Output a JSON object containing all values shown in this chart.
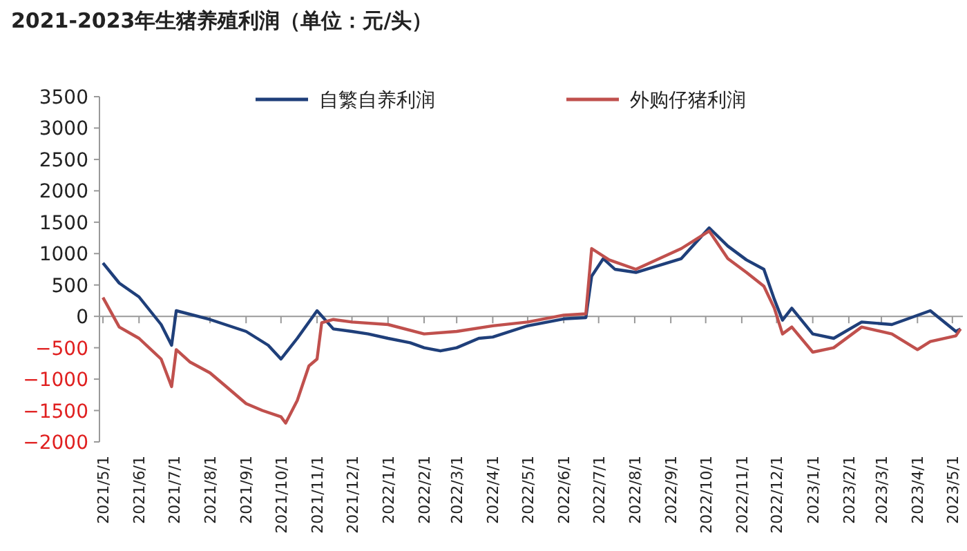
{
  "chart_data": {
    "type": "line",
    "title": "2021-2023年生猪养殖利润（单位：元/头）",
    "legend": "top",
    "xlim": [
      "2021-04-28",
      "2023-05-10"
    ],
    "ylim": [
      -2000,
      3500
    ],
    "yticks": [
      -2000,
      -1500,
      -1000,
      -500,
      0,
      500,
      1000,
      1500,
      2000,
      2500,
      3000,
      3500
    ],
    "xticks": [
      {
        "value": "2021-05-01",
        "label": "2021/5/1"
      },
      {
        "value": "2021-06-01",
        "label": "2021/6/1"
      },
      {
        "value": "2021-07-01",
        "label": "2021/7/1"
      },
      {
        "value": "2021-08-01",
        "label": "2021/8/1"
      },
      {
        "value": "2021-09-01",
        "label": "2021/9/1"
      },
      {
        "value": "2021-10-01",
        "label": "2021/10/1"
      },
      {
        "value": "2021-11-01",
        "label": "2021/11/1"
      },
      {
        "value": "2021-12-01",
        "label": "2021/12/1"
      },
      {
        "value": "2022-01-01",
        "label": "2022/1/1"
      },
      {
        "value": "2022-02-01",
        "label": "2022/2/1"
      },
      {
        "value": "2022-03-01",
        "label": "2022/3/1"
      },
      {
        "value": "2022-04-01",
        "label": "2022/4/1"
      },
      {
        "value": "2022-05-01",
        "label": "2022/5/1"
      },
      {
        "value": "2022-06-01",
        "label": "2022/6/1"
      },
      {
        "value": "2022-07-01",
        "label": "2022/7/1"
      },
      {
        "value": "2022-08-01",
        "label": "2022/8/1"
      },
      {
        "value": "2022-09-01",
        "label": "2022/9/1"
      },
      {
        "value": "2022-10-01",
        "label": "2022/10/1"
      },
      {
        "value": "2022-11-01",
        "label": "2022/11/1"
      },
      {
        "value": "2022-12-01",
        "label": "2022/12/1"
      },
      {
        "value": "2023-01-01",
        "label": "2023/1/1"
      },
      {
        "value": "2023-02-01",
        "label": "2023/2/1"
      },
      {
        "value": "2023-03-01",
        "label": "2023/3/1"
      },
      {
        "value": "2023-04-01",
        "label": "2023/4/1"
      },
      {
        "value": "2023-05-01",
        "label": "2023/5/1"
      }
    ],
    "series": [
      {
        "name": "自繁自养利润",
        "color": "#1f3f7a",
        "x": [
          "2021-05-01",
          "2021-05-15",
          "2021-06-01",
          "2021-06-20",
          "2021-06-29",
          "2021-07-03",
          "2021-08-01",
          "2021-09-01",
          "2021-09-20",
          "2021-10-01",
          "2021-10-15",
          "2021-11-01",
          "2021-11-15",
          "2021-12-01",
          "2021-12-15",
          "2022-01-01",
          "2022-01-20",
          "2022-02-01",
          "2022-02-15",
          "2022-03-01",
          "2022-03-20",
          "2022-04-01",
          "2022-05-01",
          "2022-06-01",
          "2022-06-20",
          "2022-06-25",
          "2022-07-05",
          "2022-07-15",
          "2022-08-02",
          "2022-09-10",
          "2022-10-04",
          "2022-10-20",
          "2022-11-05",
          "2022-11-20",
          "2022-11-29",
          "2022-12-06",
          "2022-12-14",
          "2023-01-01",
          "2023-01-19",
          "2023-02-12",
          "2023-03-10",
          "2023-04-12",
          "2023-05-04",
          "2023-05-08"
        ],
        "values": [
          850,
          530,
          310,
          -130,
          -460,
          90,
          -50,
          -240,
          -460,
          -680,
          -350,
          90,
          -200,
          -240,
          -280,
          -350,
          -420,
          -500,
          -550,
          -500,
          -350,
          -330,
          -150,
          -40,
          -20,
          640,
          920,
          750,
          700,
          920,
          1410,
          1120,
          900,
          750,
          270,
          -60,
          130,
          -280,
          -350,
          -90,
          -130,
          90,
          -240,
          -200
        ]
      },
      {
        "name": "外购仔猪利润",
        "color": "#c0504d",
        "x": [
          "2021-05-01",
          "2021-05-15",
          "2021-06-01",
          "2021-06-20",
          "2021-06-29",
          "2021-07-03",
          "2021-07-15",
          "2021-08-01",
          "2021-08-15",
          "2021-09-01",
          "2021-09-15",
          "2021-10-01",
          "2021-10-05",
          "2021-10-15",
          "2021-10-25",
          "2021-11-01",
          "2021-11-05",
          "2021-11-15",
          "2021-12-01",
          "2022-01-01",
          "2022-02-01",
          "2022-03-01",
          "2022-04-01",
          "2022-05-01",
          "2022-06-01",
          "2022-06-20",
          "2022-06-25",
          "2022-07-10",
          "2022-08-02",
          "2022-09-10",
          "2022-10-04",
          "2022-10-20",
          "2022-11-05",
          "2022-11-20",
          "2022-11-29",
          "2022-12-06",
          "2022-12-14",
          "2023-01-01",
          "2023-01-19",
          "2023-02-12",
          "2023-03-10",
          "2023-04-01",
          "2023-04-12",
          "2023-05-04",
          "2023-05-08"
        ],
        "values": [
          300,
          -170,
          -350,
          -680,
          -1120,
          -530,
          -730,
          -900,
          -1120,
          -1390,
          -1500,
          -1600,
          -1700,
          -1340,
          -790,
          -680,
          -100,
          -50,
          -90,
          -130,
          -280,
          -240,
          -150,
          -90,
          20,
          40,
          1080,
          900,
          750,
          1080,
          1360,
          920,
          700,
          480,
          130,
          -280,
          -170,
          -570,
          -500,
          -170,
          -280,
          -530,
          -400,
          -310,
          -200
        ]
      }
    ]
  }
}
